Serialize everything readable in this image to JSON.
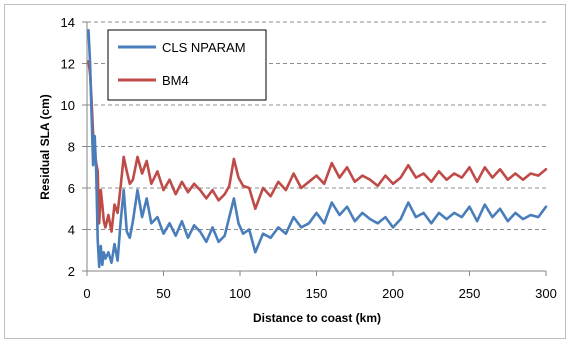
{
  "chart_data": {
    "type": "line",
    "title": "",
    "xlabel": "Distance to coast (km)",
    "ylabel": "Residual SLA (cm)",
    "xlim": [
      0,
      300
    ],
    "ylim": [
      2,
      14
    ],
    "xticks": [
      0,
      50,
      100,
      150,
      200,
      250,
      300
    ],
    "yticks": [
      2,
      4,
      6,
      8,
      10,
      12,
      14
    ],
    "grid": "horizontal dashed",
    "legend_position": "top-left",
    "series": [
      {
        "name": "CLS NPARAM",
        "color": "#4a7ebb",
        "x": [
          1,
          2,
          3,
          4,
          5,
          6,
          7,
          8,
          9,
          10,
          11,
          12,
          14,
          16,
          18,
          20,
          22,
          24,
          26,
          28,
          30,
          33,
          36,
          39,
          42,
          46,
          50,
          54,
          58,
          62,
          66,
          70,
          74,
          78,
          82,
          86,
          90,
          93,
          96,
          99,
          102,
          106,
          110,
          115,
          120,
          125,
          130,
          135,
          140,
          145,
          150,
          155,
          160,
          165,
          170,
          175,
          180,
          185,
          190,
          195,
          200,
          205,
          210,
          215,
          220,
          225,
          230,
          235,
          240,
          245,
          250,
          255,
          260,
          265,
          270,
          275,
          280,
          285,
          290,
          295,
          300
        ],
        "y": [
          13.6,
          12.0,
          9.5,
          7.1,
          8.5,
          6.8,
          3.5,
          2.2,
          3.2,
          2.3,
          2.9,
          2.6,
          2.9,
          2.4,
          3.3,
          2.5,
          4.4,
          5.9,
          3.9,
          3.6,
          4.4,
          5.9,
          4.6,
          5.5,
          4.3,
          4.6,
          3.8,
          4.3,
          3.7,
          4.4,
          3.6,
          4.2,
          3.9,
          3.4,
          4.1,
          3.4,
          3.7,
          4.6,
          5.5,
          4.3,
          3.8,
          4.0,
          2.9,
          3.8,
          3.6,
          4.1,
          3.8,
          4.6,
          4.1,
          4.3,
          4.8,
          4.3,
          5.3,
          4.7,
          5.1,
          4.4,
          4.8,
          4.5,
          4.3,
          4.6,
          4.1,
          4.5,
          5.3,
          4.6,
          4.8,
          4.3,
          4.8,
          4.5,
          4.8,
          4.6,
          5.1,
          4.4,
          5.2,
          4.6,
          5.0,
          4.4,
          4.8,
          4.5,
          4.7,
          4.6,
          5.1
        ]
      },
      {
        "name": "BM4",
        "color": "#be4b48",
        "x": [
          1,
          2,
          3,
          4,
          5,
          6,
          7,
          8,
          9,
          10,
          11,
          12,
          14,
          16,
          18,
          20,
          22,
          24,
          26,
          28,
          30,
          33,
          36,
          39,
          42,
          46,
          50,
          54,
          58,
          62,
          66,
          70,
          74,
          78,
          82,
          86,
          90,
          93,
          96,
          99,
          102,
          106,
          110,
          115,
          120,
          125,
          130,
          135,
          140,
          145,
          150,
          155,
          160,
          165,
          170,
          175,
          180,
          185,
          190,
          195,
          200,
          205,
          210,
          215,
          220,
          225,
          230,
          235,
          240,
          245,
          250,
          255,
          260,
          265,
          270,
          275,
          280,
          285,
          290,
          295,
          300
        ],
        "y": [
          12.1,
          11.5,
          10.2,
          8.6,
          7.8,
          7.2,
          6.8,
          4.3,
          5.9,
          5.2,
          4.4,
          4.1,
          4.7,
          3.9,
          5.2,
          4.8,
          6.1,
          7.5,
          6.8,
          6.2,
          6.4,
          7.5,
          6.7,
          7.3,
          6.2,
          6.8,
          5.9,
          6.4,
          5.7,
          6.3,
          5.8,
          6.2,
          5.9,
          5.5,
          5.9,
          5.4,
          5.7,
          6.1,
          7.4,
          6.5,
          6.1,
          6.0,
          5.0,
          6.0,
          5.6,
          6.3,
          5.9,
          6.7,
          6.0,
          6.3,
          6.6,
          6.2,
          7.2,
          6.5,
          7.0,
          6.3,
          6.6,
          6.4,
          6.1,
          6.6,
          6.2,
          6.5,
          7.1,
          6.5,
          6.7,
          6.3,
          6.8,
          6.4,
          6.7,
          6.5,
          7.0,
          6.3,
          7.0,
          6.5,
          6.9,
          6.4,
          6.7,
          6.4,
          6.7,
          6.6,
          6.9
        ]
      }
    ]
  }
}
